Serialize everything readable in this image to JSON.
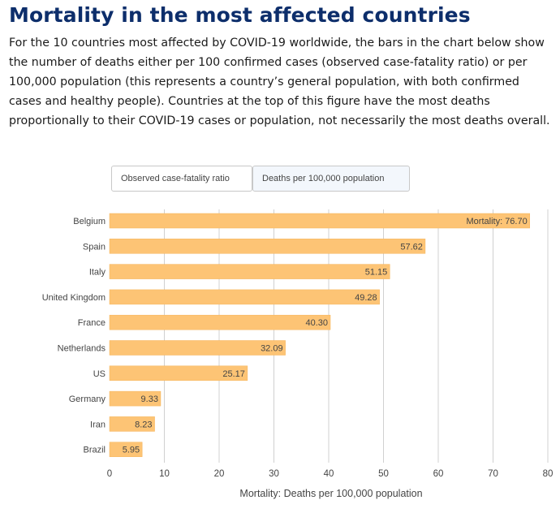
{
  "header": {
    "title": "Mortality in the most affected countries",
    "description": "For the 10 countries most affected by COVID-19 worldwide, the bars in the chart below show the number of deaths either per 100 confirmed cases (observed case-fatality ratio) or per 100,000 population (this represents a country’s general population, with both confirmed cases and healthy people). Countries at the top of this figure have the most deaths proportionally to their COVID-19 cases or population, not necessarily the most deaths overall."
  },
  "toggles": {
    "cfr_label": "Observed case-fatality ratio",
    "per100k_label": "Deaths per 100,000 population",
    "selected": "per100k"
  },
  "chart_data": {
    "type": "bar",
    "orientation": "horizontal",
    "categories": [
      "Belgium",
      "Spain",
      "Italy",
      "United Kingdom",
      "France",
      "Netherlands",
      "US",
      "Germany",
      "Iran",
      "Brazil"
    ],
    "values": [
      76.7,
      57.62,
      51.15,
      49.28,
      40.3,
      32.09,
      25.17,
      9.33,
      8.23,
      5.95
    ],
    "value_labels": [
      "Mortality: 76.70",
      "57.62",
      "51.15",
      "49.28",
      "40.30",
      "32.09",
      "25.17",
      "9.33",
      "8.23",
      "5.95"
    ],
    "xlabel": "Mortality: Deaths per 100,000 population",
    "xlim": [
      0,
      80
    ],
    "xticks": [
      0,
      10,
      20,
      30,
      40,
      50,
      60,
      70,
      80
    ],
    "grid": true,
    "colors": {
      "bar": "#fdc475",
      "bar_stroke": "#f5b45a",
      "grid": "#d0d0d0",
      "title": "#0d2e6b"
    }
  }
}
